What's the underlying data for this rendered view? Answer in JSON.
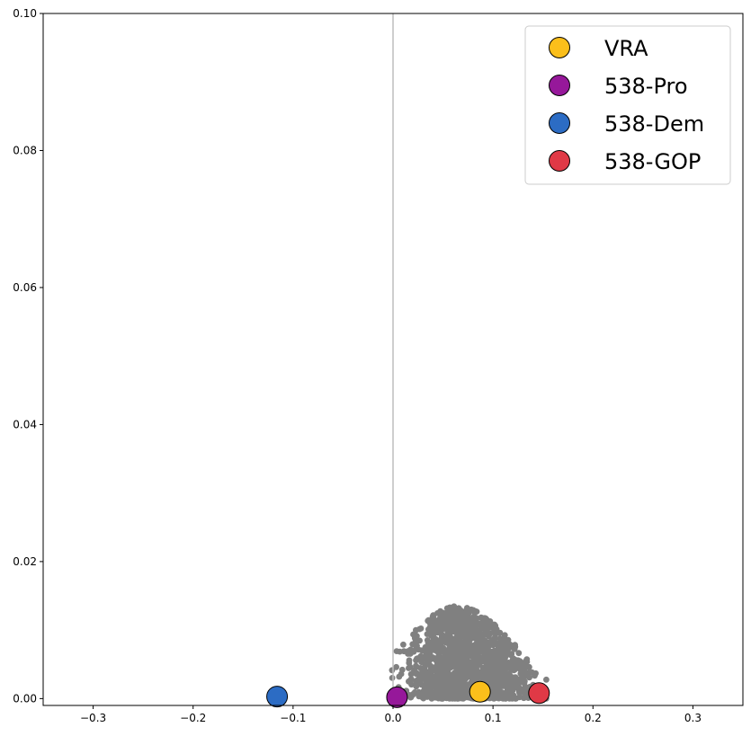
{
  "chart_data": {
    "type": "scatter",
    "title": "",
    "xlabel": "",
    "ylabel": "",
    "xlim": [
      -0.35,
      0.35
    ],
    "ylim": [
      -0.001,
      0.1
    ],
    "x_ticks": [
      -0.3,
      -0.2,
      -0.1,
      0.0,
      0.1,
      0.2,
      0.3
    ],
    "x_tick_labels": [
      "−0.3",
      "−0.2",
      "−0.1",
      "0.0",
      "0.1",
      "0.2",
      "0.3"
    ],
    "y_ticks": [
      0.0,
      0.02,
      0.04,
      0.06,
      0.08,
      0.1
    ],
    "y_tick_labels": [
      "0.00",
      "0.02",
      "0.04",
      "0.06",
      "0.08",
      "0.10"
    ],
    "reference_line": {
      "x": 0.0,
      "color": "#bdbdbd"
    },
    "background_cloud": {
      "description_color": "#808080",
      "x_range": [
        -0.01,
        0.16
      ],
      "y_peak": 0.0135,
      "peak_x": 0.065,
      "count": 1600
    },
    "series": [
      {
        "name": "VRA",
        "color": "#fbbf1b",
        "x": 0.087,
        "y": 0.001
      },
      {
        "name": "538-Pro",
        "color": "#96189a",
        "x": 0.004,
        "y": 0.0002
      },
      {
        "name": "538-Dem",
        "color": "#2c6cc4",
        "x": -0.116,
        "y": 0.0003
      },
      {
        "name": "538-GOP",
        "color": "#e03946",
        "x": 0.146,
        "y": 0.0008
      }
    ],
    "legend": {
      "placement": "top-right"
    }
  }
}
